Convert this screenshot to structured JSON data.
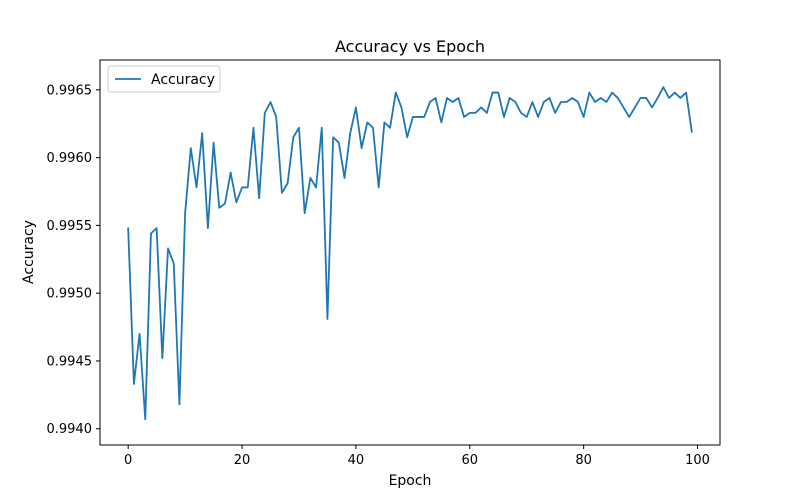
{
  "chart_data": {
    "type": "line",
    "title": "Accuracy vs Epoch",
    "xlabel": "Epoch",
    "ylabel": "Accuracy",
    "xlim": [
      -4.95,
      103.95
    ],
    "ylim": [
      0.99388,
      0.99672
    ],
    "xticks": [
      0,
      20,
      40,
      60,
      80,
      100
    ],
    "xtick_labels": [
      "0",
      "20",
      "40",
      "60",
      "80",
      "100"
    ],
    "yticks": [
      0.994,
      0.9945,
      0.995,
      0.9955,
      0.996,
      0.9965
    ],
    "ytick_labels": [
      "0.9940",
      "0.9945",
      "0.9950",
      "0.9955",
      "0.9960",
      "0.9965"
    ],
    "grid": false,
    "legend": {
      "position": "upper-left"
    },
    "series": [
      {
        "name": "Accuracy",
        "color": "#1f77b4",
        "x": [
          0,
          1,
          2,
          3,
          4,
          5,
          6,
          7,
          8,
          9,
          10,
          11,
          12,
          13,
          14,
          15,
          16,
          17,
          18,
          19,
          20,
          21,
          22,
          23,
          24,
          25,
          26,
          27,
          28,
          29,
          30,
          31,
          32,
          33,
          34,
          35,
          36,
          37,
          38,
          39,
          40,
          41,
          42,
          43,
          44,
          45,
          46,
          47,
          48,
          49,
          50,
          51,
          52,
          53,
          54,
          55,
          56,
          57,
          58,
          59,
          60,
          61,
          62,
          63,
          64,
          65,
          66,
          67,
          68,
          69,
          70,
          71,
          72,
          73,
          74,
          75,
          76,
          77,
          78,
          79,
          80,
          81,
          82,
          83,
          84,
          85,
          86,
          87,
          88,
          89,
          90,
          91,
          92,
          93,
          94,
          95,
          96,
          97,
          98,
          99
        ],
        "values": [
          0.99548,
          0.99433,
          0.9947,
          0.99407,
          0.99544,
          0.99548,
          0.99452,
          0.99533,
          0.99522,
          0.99418,
          0.99559,
          0.99607,
          0.99578,
          0.99618,
          0.99548,
          0.99611,
          0.99563,
          0.99566,
          0.99589,
          0.99567,
          0.99578,
          0.99578,
          0.99622,
          0.9957,
          0.99633,
          0.99641,
          0.9963,
          0.99574,
          0.99581,
          0.99615,
          0.99622,
          0.99559,
          0.99585,
          0.99578,
          0.99622,
          0.99481,
          0.99615,
          0.99611,
          0.99585,
          0.99618,
          0.99637,
          0.99607,
          0.99626,
          0.99622,
          0.99578,
          0.99626,
          0.99622,
          0.99648,
          0.99637,
          0.99615,
          0.9963,
          0.9963,
          0.9963,
          0.99641,
          0.99644,
          0.99626,
          0.99644,
          0.99641,
          0.99644,
          0.9963,
          0.99633,
          0.99633,
          0.99637,
          0.99633,
          0.99648,
          0.99648,
          0.9963,
          0.99644,
          0.99641,
          0.99633,
          0.9963,
          0.99641,
          0.9963,
          0.99641,
          0.99644,
          0.99633,
          0.99641,
          0.99641,
          0.99644,
          0.99641,
          0.9963,
          0.99648,
          0.99641,
          0.99644,
          0.99641,
          0.99648,
          0.99644,
          0.99637,
          0.9963,
          0.99637,
          0.99644,
          0.99644,
          0.99637,
          0.99644,
          0.99652,
          0.99644,
          0.99648,
          0.99644,
          0.99648,
          0.99619
        ]
      }
    ]
  }
}
